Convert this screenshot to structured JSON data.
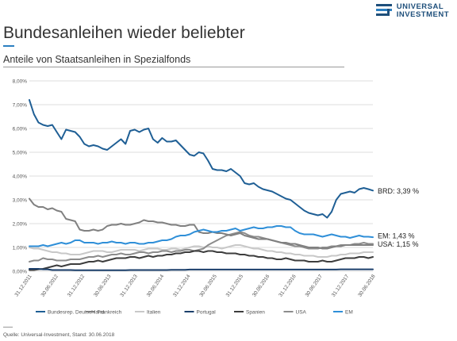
{
  "header": {
    "logo_line1": "UNIVERSAL",
    "logo_line2": "INVESTMENT",
    "logo_icon": "universal-investment-logo-icon",
    "brand_color": "#1e4f7b"
  },
  "title": "Bundesanleihen wieder beliebter",
  "subtitle": "Anteile von Staatsanleihen in Spezialfonds",
  "source": "Quelle: Universal-Investment, Stand: 30.06.2018",
  "chart_data": {
    "type": "line",
    "title": "",
    "xlabel": "",
    "ylabel": "",
    "ylim": [
      0,
      8
    ],
    "y_ticks": [
      "0,00%",
      "1,00%",
      "2,00%",
      "3,00%",
      "4,00%",
      "5,00%",
      "6,00%",
      "7,00%",
      "8,00%"
    ],
    "x_tick_labels": [
      "31.12.2011",
      "30.06.2012",
      "31.12.2012",
      "30.06.2013",
      "31.12.2013",
      "30.06.2014",
      "31.12.2014",
      "30.06.2015",
      "31.12.2015",
      "30.06.2016",
      "31.12.2016",
      "30.06.2017",
      "31.12.2017",
      "30.06.2018"
    ],
    "x_start": "2011-12-31",
    "x_end": "2018-06-30",
    "grid": "horizontal",
    "legend_position": "bottom",
    "series": [
      {
        "name": "Bundesrep. Deutschland",
        "color": "#1f5f95",
        "width": 2,
        "values": [
          7.2,
          6.6,
          6.25,
          6.15,
          6.1,
          6.15,
          5.85,
          5.55,
          5.95,
          5.9,
          5.85,
          5.65,
          5.35,
          5.25,
          5.3,
          5.25,
          5.15,
          5.1,
          5.25,
          5.4,
          5.55,
          5.35,
          5.9,
          5.95,
          5.85,
          5.95,
          6.0,
          5.55,
          5.4,
          5.6,
          5.45,
          5.45,
          5.5,
          5.3,
          5.1,
          4.9,
          4.85,
          5.0,
          4.95,
          4.65,
          4.3,
          4.25,
          4.25,
          4.2,
          4.3,
          4.15,
          4.0,
          3.7,
          3.65,
          3.7,
          3.55,
          3.45,
          3.4,
          3.35,
          3.25,
          3.15,
          3.05,
          3.0,
          2.85,
          2.7,
          2.55,
          2.45,
          2.4,
          2.35,
          2.4,
          2.25,
          2.5,
          3.0,
          3.25,
          3.3,
          3.35,
          3.3,
          3.45,
          3.5,
          3.45,
          3.39
        ]
      },
      {
        "name": "Frankreich",
        "color": "#808080",
        "width": 2,
        "values": [
          3.05,
          2.8,
          2.7,
          2.7,
          2.6,
          2.65,
          2.55,
          2.5,
          2.2,
          2.15,
          2.1,
          1.75,
          1.7,
          1.7,
          1.75,
          1.7,
          1.75,
          1.9,
          1.95,
          1.95,
          2.0,
          1.95,
          1.95,
          2.0,
          2.05,
          2.15,
          2.1,
          2.1,
          2.05,
          2.05,
          2.0,
          1.95,
          1.95,
          1.9,
          1.9,
          1.95,
          1.95,
          1.65,
          1.6,
          1.6,
          1.65,
          1.6,
          1.6,
          1.55,
          1.5,
          1.55,
          1.6,
          1.5,
          1.45,
          1.4,
          1.35,
          1.35,
          1.35,
          1.3,
          1.25,
          1.2,
          1.2,
          1.15,
          1.15,
          1.1,
          1.05,
          1.0,
          1.0,
          1.0,
          0.95,
          0.95,
          1.0,
          1.05,
          1.05,
          1.1,
          1.1,
          1.1,
          1.1,
          1.1,
          1.1,
          1.1
        ]
      },
      {
        "name": "Italien",
        "color": "#c8c8c8",
        "width": 2,
        "values": [
          1.0,
          0.95,
          0.95,
          0.9,
          0.85,
          0.8,
          0.8,
          0.75,
          0.75,
          0.7,
          0.7,
          0.7,
          0.75,
          0.8,
          0.85,
          0.85,
          0.85,
          0.8,
          0.8,
          0.85,
          0.9,
          0.9,
          0.9,
          0.9,
          0.85,
          0.9,
          0.95,
          0.95,
          0.95,
          0.9,
          0.9,
          0.95,
          0.95,
          0.9,
          0.95,
          1.0,
          1.05,
          1.05,
          1.0,
          1.05,
          1.0,
          1.0,
          0.95,
          1.0,
          1.05,
          1.1,
          1.1,
          1.05,
          1.0,
          0.95,
          0.95,
          0.9,
          0.85,
          0.85,
          0.8,
          0.8,
          0.75,
          0.75,
          0.7,
          0.7,
          0.65,
          0.65,
          0.65,
          0.6,
          0.6,
          0.6,
          0.65,
          0.65,
          0.7,
          0.7,
          0.75,
          0.75,
          0.75,
          0.8,
          0.8,
          0.8
        ]
      },
      {
        "name": "Portugal",
        "color": "#1b3f6b",
        "width": 2,
        "values": [
          0.1,
          0.1,
          0.1,
          0.08,
          0.08,
          0.05,
          0.05,
          0.05,
          0.05,
          0.05,
          0.04,
          0.04,
          0.04,
          0.04,
          0.04,
          0.04,
          0.04,
          0.04,
          0.04,
          0.04,
          0.04,
          0.04,
          0.05,
          0.05,
          0.05,
          0.05,
          0.05,
          0.05,
          0.05,
          0.05,
          0.05,
          0.06,
          0.06,
          0.06,
          0.06,
          0.07,
          0.07,
          0.07,
          0.07,
          0.07,
          0.07,
          0.07,
          0.07,
          0.07,
          0.07,
          0.07,
          0.07,
          0.07,
          0.07,
          0.07,
          0.07,
          0.07,
          0.07,
          0.07,
          0.07,
          0.07,
          0.07,
          0.07,
          0.07,
          0.07,
          0.07,
          0.07,
          0.07,
          0.07,
          0.07,
          0.07,
          0.07,
          0.07,
          0.08,
          0.08,
          0.08,
          0.08,
          0.08,
          0.08,
          0.08,
          0.08
        ]
      },
      {
        "name": "Spanien",
        "color": "#3d3d3d",
        "width": 2,
        "values": [
          0.05,
          0.05,
          0.08,
          0.1,
          0.15,
          0.2,
          0.25,
          0.2,
          0.25,
          0.3,
          0.3,
          0.3,
          0.35,
          0.4,
          0.4,
          0.45,
          0.4,
          0.45,
          0.5,
          0.55,
          0.55,
          0.55,
          0.6,
          0.6,
          0.55,
          0.6,
          0.65,
          0.6,
          0.65,
          0.65,
          0.7,
          0.7,
          0.75,
          0.75,
          0.8,
          0.8,
          0.85,
          0.85,
          0.8,
          0.85,
          0.85,
          0.8,
          0.8,
          0.75,
          0.75,
          0.75,
          0.7,
          0.7,
          0.65,
          0.65,
          0.6,
          0.6,
          0.55,
          0.55,
          0.5,
          0.5,
          0.55,
          0.5,
          0.45,
          0.45,
          0.45,
          0.4,
          0.4,
          0.4,
          0.45,
          0.4,
          0.4,
          0.45,
          0.5,
          0.55,
          0.55,
          0.55,
          0.6,
          0.6,
          0.55,
          0.6
        ]
      },
      {
        "name": "USA",
        "color": "#8c8c8c",
        "width": 2,
        "values": [
          0.4,
          0.45,
          0.45,
          0.55,
          0.5,
          0.5,
          0.45,
          0.45,
          0.45,
          0.5,
          0.5,
          0.5,
          0.55,
          0.6,
          0.6,
          0.65,
          0.6,
          0.65,
          0.7,
          0.7,
          0.75,
          0.7,
          0.7,
          0.75,
          0.8,
          0.8,
          0.75,
          0.8,
          0.8,
          0.85,
          0.85,
          0.8,
          0.85,
          0.85,
          0.9,
          0.9,
          0.85,
          0.9,
          0.95,
          1.1,
          1.2,
          1.3,
          1.4,
          1.5,
          1.55,
          1.6,
          1.65,
          1.6,
          1.5,
          1.45,
          1.45,
          1.4,
          1.35,
          1.3,
          1.25,
          1.2,
          1.15,
          1.1,
          1.05,
          1.05,
          1.0,
          0.95,
          0.95,
          0.95,
          1.0,
          1.0,
          1.05,
          1.05,
          1.1,
          1.1,
          1.1,
          1.15,
          1.15,
          1.2,
          1.15,
          1.15
        ]
      },
      {
        "name": "EM",
        "color": "#2f8fd8",
        "width": 2,
        "values": [
          1.05,
          1.05,
          1.05,
          1.1,
          1.05,
          1.1,
          1.15,
          1.2,
          1.15,
          1.2,
          1.3,
          1.3,
          1.2,
          1.2,
          1.2,
          1.15,
          1.2,
          1.2,
          1.25,
          1.2,
          1.2,
          1.15,
          1.2,
          1.2,
          1.15,
          1.15,
          1.2,
          1.2,
          1.25,
          1.3,
          1.3,
          1.35,
          1.45,
          1.5,
          1.5,
          1.55,
          1.65,
          1.7,
          1.75,
          1.7,
          1.65,
          1.65,
          1.7,
          1.7,
          1.75,
          1.8,
          1.7,
          1.75,
          1.8,
          1.85,
          1.8,
          1.8,
          1.85,
          1.85,
          1.9,
          1.9,
          1.85,
          1.85,
          1.7,
          1.6,
          1.55,
          1.55,
          1.55,
          1.5,
          1.45,
          1.5,
          1.55,
          1.5,
          1.45,
          1.45,
          1.4,
          1.45,
          1.5,
          1.45,
          1.45,
          1.43
        ]
      }
    ],
    "end_labels": [
      {
        "series": "Bundesrep. Deutschland",
        "text": "BRD: 3,39 %",
        "value": 3.39
      },
      {
        "series": "EM",
        "text": "EM: 1,43 %",
        "value": 1.5
      },
      {
        "series": "USA",
        "text": "USA: 1,15 %",
        "value": 1.15
      }
    ]
  }
}
